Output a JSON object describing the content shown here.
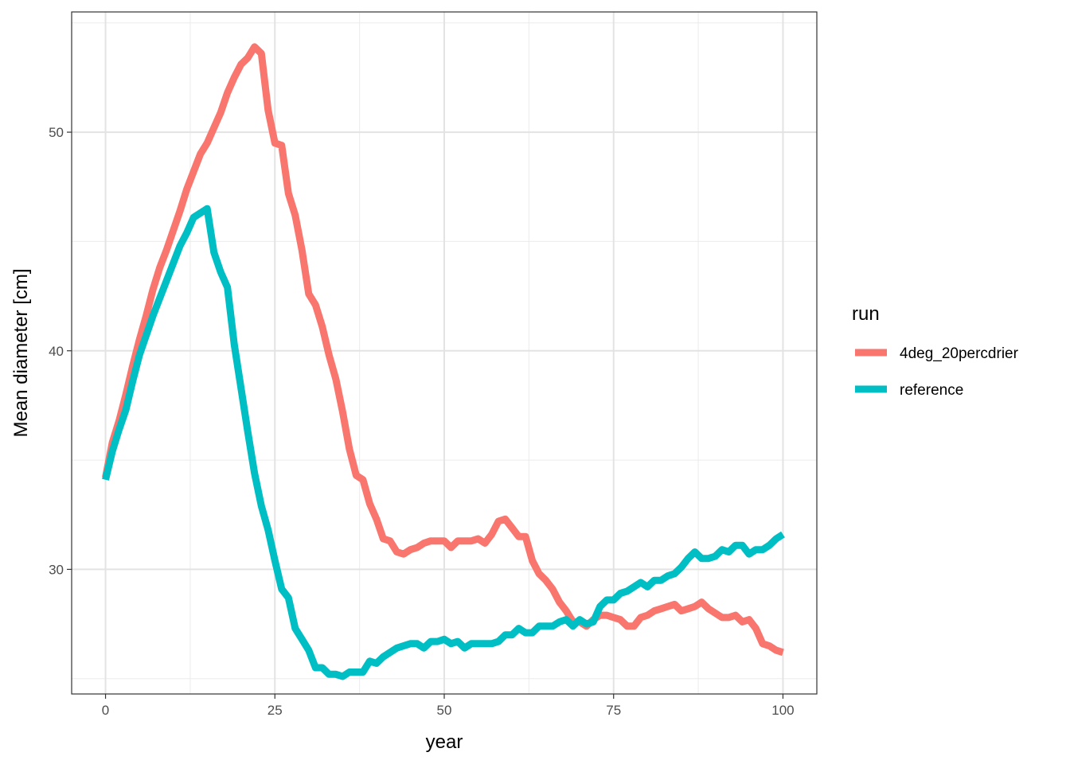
{
  "chart_data": {
    "type": "line",
    "xlabel": "year",
    "ylabel": "Mean diameter [cm]",
    "xlim": [
      -5,
      105
    ],
    "ylim": [
      24.3,
      55.5
    ],
    "x_ticks": [
      0,
      25,
      50,
      75,
      100
    ],
    "x_tick_labels": [
      "0",
      "25",
      "50",
      "75",
      "100"
    ],
    "y_ticks": [
      30,
      40,
      50
    ],
    "y_tick_labels": [
      "30",
      "40",
      "50"
    ],
    "y_minor_ticks": [
      25,
      35,
      45,
      55
    ],
    "x_minor_ticks": [
      12.5,
      37.5,
      62.5,
      87.5
    ],
    "grid": true,
    "legend": {
      "title": "run",
      "position": "right"
    },
    "series": [
      {
        "name": "4deg_20percdrier",
        "color": "#F8766D",
        "points": [
          [
            0,
            34.2
          ],
          [
            1,
            35.8
          ],
          [
            2,
            36.8
          ],
          [
            3,
            38.0
          ],
          [
            4,
            39.3
          ],
          [
            5,
            40.5
          ],
          [
            6,
            41.6
          ],
          [
            7,
            42.8
          ],
          [
            8,
            43.8
          ],
          [
            9,
            44.6
          ],
          [
            10,
            45.5
          ],
          [
            11,
            46.4
          ],
          [
            12,
            47.4
          ],
          [
            13,
            48.2
          ],
          [
            14,
            49.0
          ],
          [
            15,
            49.5
          ],
          [
            16,
            50.2
          ],
          [
            17,
            50.9
          ],
          [
            18,
            51.8
          ],
          [
            19,
            52.5
          ],
          [
            20,
            53.1
          ],
          [
            21,
            53.4
          ],
          [
            22,
            53.9
          ],
          [
            23,
            53.6
          ],
          [
            24,
            51.0
          ],
          [
            25,
            49.5
          ],
          [
            26,
            49.4
          ],
          [
            27,
            47.2
          ],
          [
            28,
            46.2
          ],
          [
            29,
            44.6
          ],
          [
            30,
            42.6
          ],
          [
            31,
            42.1
          ],
          [
            32,
            41.1
          ],
          [
            33,
            39.8
          ],
          [
            34,
            38.7
          ],
          [
            35,
            37.2
          ],
          [
            36,
            35.5
          ],
          [
            37,
            34.3
          ],
          [
            38,
            34.1
          ],
          [
            39,
            33.0
          ],
          [
            40,
            32.3
          ],
          [
            41,
            31.4
          ],
          [
            42,
            31.3
          ],
          [
            43,
            30.8
          ],
          [
            44,
            30.7
          ],
          [
            45,
            30.9
          ],
          [
            46,
            31.0
          ],
          [
            47,
            31.2
          ],
          [
            48,
            31.3
          ],
          [
            49,
            31.3
          ],
          [
            50,
            31.3
          ],
          [
            51,
            31.0
          ],
          [
            52,
            31.3
          ],
          [
            53,
            31.3
          ],
          [
            54,
            31.3
          ],
          [
            55,
            31.4
          ],
          [
            56,
            31.2
          ],
          [
            57,
            31.6
          ],
          [
            58,
            32.2
          ],
          [
            59,
            32.3
          ],
          [
            60,
            31.9
          ],
          [
            61,
            31.5
          ],
          [
            62,
            31.5
          ],
          [
            63,
            30.4
          ],
          [
            64,
            29.8
          ],
          [
            65,
            29.5
          ],
          [
            66,
            29.1
          ],
          [
            67,
            28.5
          ],
          [
            68,
            28.1
          ],
          [
            69,
            27.6
          ],
          [
            70,
            27.6
          ],
          [
            71,
            27.4
          ],
          [
            72,
            27.7
          ],
          [
            73,
            27.9
          ],
          [
            74,
            27.9
          ],
          [
            75,
            27.8
          ],
          [
            76,
            27.7
          ],
          [
            77,
            27.4
          ],
          [
            78,
            27.4
          ],
          [
            79,
            27.8
          ],
          [
            80,
            27.9
          ],
          [
            81,
            28.1
          ],
          [
            82,
            28.2
          ],
          [
            83,
            28.3
          ],
          [
            84,
            28.4
          ],
          [
            85,
            28.1
          ],
          [
            86,
            28.2
          ],
          [
            87,
            28.3
          ],
          [
            88,
            28.5
          ],
          [
            89,
            28.2
          ],
          [
            90,
            28.0
          ],
          [
            91,
            27.8
          ],
          [
            92,
            27.8
          ],
          [
            93,
            27.9
          ],
          [
            94,
            27.6
          ],
          [
            95,
            27.7
          ],
          [
            96,
            27.3
          ],
          [
            97,
            26.6
          ],
          [
            98,
            26.5
          ],
          [
            99,
            26.3
          ],
          [
            100,
            26.2
          ]
        ]
      },
      {
        "name": "reference",
        "color": "#00BFC4",
        "points": [
          [
            0,
            34.1
          ],
          [
            1,
            35.4
          ],
          [
            2,
            36.4
          ],
          [
            3,
            37.3
          ],
          [
            4,
            38.6
          ],
          [
            5,
            39.8
          ],
          [
            6,
            40.7
          ],
          [
            7,
            41.6
          ],
          [
            8,
            42.4
          ],
          [
            9,
            43.2
          ],
          [
            10,
            44.0
          ],
          [
            11,
            44.8
          ],
          [
            12,
            45.4
          ],
          [
            13,
            46.1
          ],
          [
            14,
            46.3
          ],
          [
            15,
            46.5
          ],
          [
            16,
            44.5
          ],
          [
            17,
            43.6
          ],
          [
            18,
            42.9
          ],
          [
            19,
            40.3
          ],
          [
            20,
            38.3
          ],
          [
            21,
            36.3
          ],
          [
            22,
            34.4
          ],
          [
            23,
            32.9
          ],
          [
            24,
            31.8
          ],
          [
            25,
            30.4
          ],
          [
            26,
            29.1
          ],
          [
            27,
            28.7
          ],
          [
            28,
            27.3
          ],
          [
            29,
            26.8
          ],
          [
            30,
            26.3
          ],
          [
            31,
            25.5
          ],
          [
            32,
            25.5
          ],
          [
            33,
            25.2
          ],
          [
            34,
            25.2
          ],
          [
            35,
            25.1
          ],
          [
            36,
            25.3
          ],
          [
            37,
            25.3
          ],
          [
            38,
            25.3
          ],
          [
            39,
            25.8
          ],
          [
            40,
            25.7
          ],
          [
            41,
            26.0
          ],
          [
            42,
            26.2
          ],
          [
            43,
            26.4
          ],
          [
            44,
            26.5
          ],
          [
            45,
            26.6
          ],
          [
            46,
            26.6
          ],
          [
            47,
            26.4
          ],
          [
            48,
            26.7
          ],
          [
            49,
            26.7
          ],
          [
            50,
            26.8
          ],
          [
            51,
            26.6
          ],
          [
            52,
            26.7
          ],
          [
            53,
            26.4
          ],
          [
            54,
            26.6
          ],
          [
            55,
            26.6
          ],
          [
            56,
            26.6
          ],
          [
            57,
            26.6
          ],
          [
            58,
            26.7
          ],
          [
            59,
            27.0
          ],
          [
            60,
            27.0
          ],
          [
            61,
            27.3
          ],
          [
            62,
            27.1
          ],
          [
            63,
            27.1
          ],
          [
            64,
            27.4
          ],
          [
            65,
            27.4
          ],
          [
            66,
            27.4
          ],
          [
            67,
            27.6
          ],
          [
            68,
            27.7
          ],
          [
            69,
            27.4
          ],
          [
            70,
            27.7
          ],
          [
            71,
            27.5
          ],
          [
            72,
            27.6
          ],
          [
            73,
            28.3
          ],
          [
            74,
            28.6
          ],
          [
            75,
            28.6
          ],
          [
            76,
            28.9
          ],
          [
            77,
            29.0
          ],
          [
            78,
            29.2
          ],
          [
            79,
            29.4
          ],
          [
            80,
            29.2
          ],
          [
            81,
            29.5
          ],
          [
            82,
            29.5
          ],
          [
            83,
            29.7
          ],
          [
            84,
            29.8
          ],
          [
            85,
            30.1
          ],
          [
            86,
            30.5
          ],
          [
            87,
            30.8
          ],
          [
            88,
            30.5
          ],
          [
            89,
            30.5
          ],
          [
            90,
            30.6
          ],
          [
            91,
            30.9
          ],
          [
            92,
            30.8
          ],
          [
            93,
            31.1
          ],
          [
            94,
            31.1
          ],
          [
            95,
            30.7
          ],
          [
            96,
            30.9
          ],
          [
            97,
            30.9
          ],
          [
            98,
            31.1
          ],
          [
            99,
            31.4
          ],
          [
            100,
            31.6
          ]
        ]
      }
    ]
  }
}
